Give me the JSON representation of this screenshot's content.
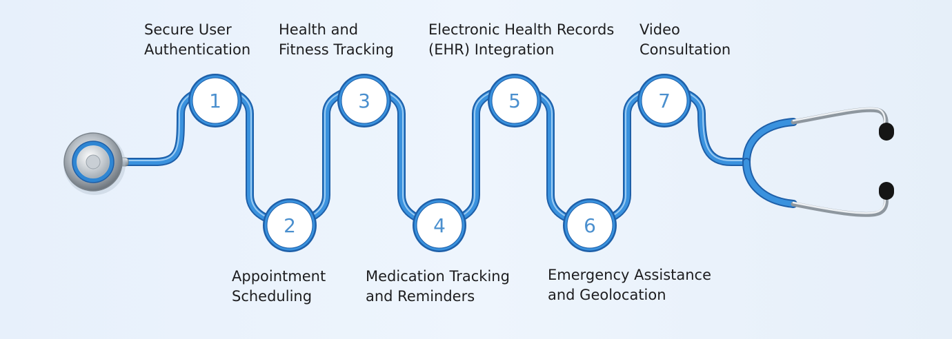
{
  "steps": [
    {
      "number": "1",
      "line1": "Secure User",
      "line2": "Authentication"
    },
    {
      "number": "2",
      "line1": "Appointment",
      "line2": "Scheduling"
    },
    {
      "number": "3",
      "line1": "Health and",
      "line2": "Fitness Tracking"
    },
    {
      "number": "4",
      "line1": "Medication Tracking",
      "line2": "and Reminders"
    },
    {
      "number": "5",
      "line1": "Electronic Health Records",
      "line2": "(EHR) Integration"
    },
    {
      "number": "6",
      "line1": "Emergency Assistance",
      "line2": "and Geolocation"
    },
    {
      "number": "7",
      "line1": "Video",
      "line2": "Consultation"
    }
  ],
  "colors": {
    "tube": "#2f86d3",
    "tube_dark": "#1e5fa8",
    "tube_highlight": "#8fc3f0",
    "circle_fill": "#ffffff",
    "number": "#4a8fce",
    "text": "#1d1d1f"
  },
  "icons": [
    "stethoscope-chestpiece-icon",
    "stethoscope-earpiece-icon"
  ]
}
